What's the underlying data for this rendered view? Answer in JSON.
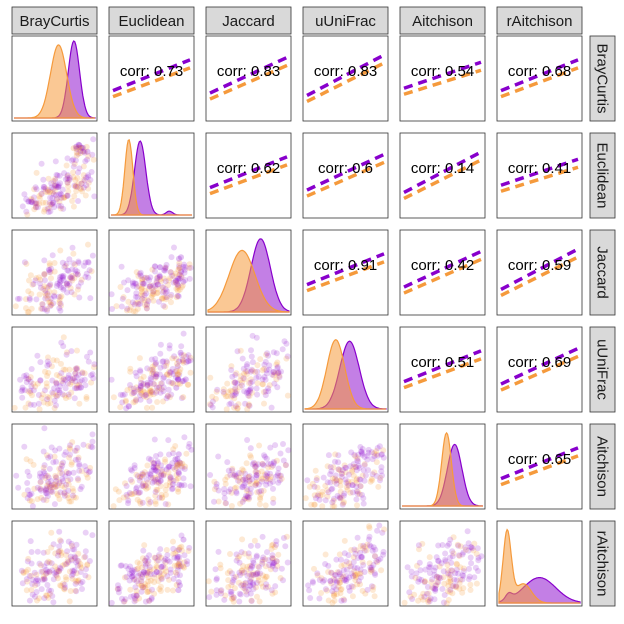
{
  "chart_data": {
    "type": "scatter-matrix",
    "variables": [
      "BrayCurtis",
      "Euclidean",
      "Jaccard",
      "uUniFrac",
      "Aitchison",
      "rAitchison"
    ],
    "groups": [
      {
        "color": "#8800cc"
      },
      {
        "color": "#f59a3c"
      }
    ],
    "correlations": [
      {
        "row": 0,
        "col": 1,
        "label": "corr: 0.73"
      },
      {
        "row": 0,
        "col": 2,
        "label": "corr: 0.83"
      },
      {
        "row": 0,
        "col": 3,
        "label": "corr: 0.83"
      },
      {
        "row": 0,
        "col": 4,
        "label": "corr: 0.54"
      },
      {
        "row": 0,
        "col": 5,
        "label": "corr: 0.68"
      },
      {
        "row": 1,
        "col": 2,
        "label": "corr: 0.62"
      },
      {
        "row": 1,
        "col": 3,
        "label": "corr: 0.6"
      },
      {
        "row": 1,
        "col": 4,
        "label": "corr: 0.14"
      },
      {
        "row": 1,
        "col": 5,
        "label": "corr: 0.41"
      },
      {
        "row": 2,
        "col": 3,
        "label": "corr: 0.91"
      },
      {
        "row": 2,
        "col": 4,
        "label": "corr: 0.42"
      },
      {
        "row": 2,
        "col": 5,
        "label": "corr: 0.59"
      },
      {
        "row": 3,
        "col": 4,
        "label": "corr: 0.51"
      },
      {
        "row": 3,
        "col": 5,
        "label": "corr: 0.69"
      },
      {
        "row": 4,
        "col": 5,
        "label": "corr: 0.65"
      }
    ],
    "grid": false,
    "legend": "none"
  }
}
